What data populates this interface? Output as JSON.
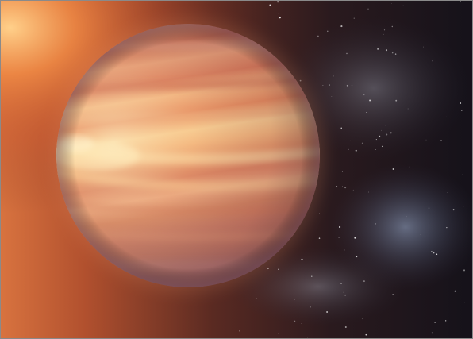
{
  "image": {
    "subject": "gas-giant-planet",
    "colors": {
      "space_dark": "#16121a",
      "glow_orange": "#e2733a",
      "planet_light": "#f4c48a",
      "planet_band": "#c9614a",
      "planet_highlight": "#fbe3a2",
      "nebula_blue": "#8fa3c4"
    }
  }
}
